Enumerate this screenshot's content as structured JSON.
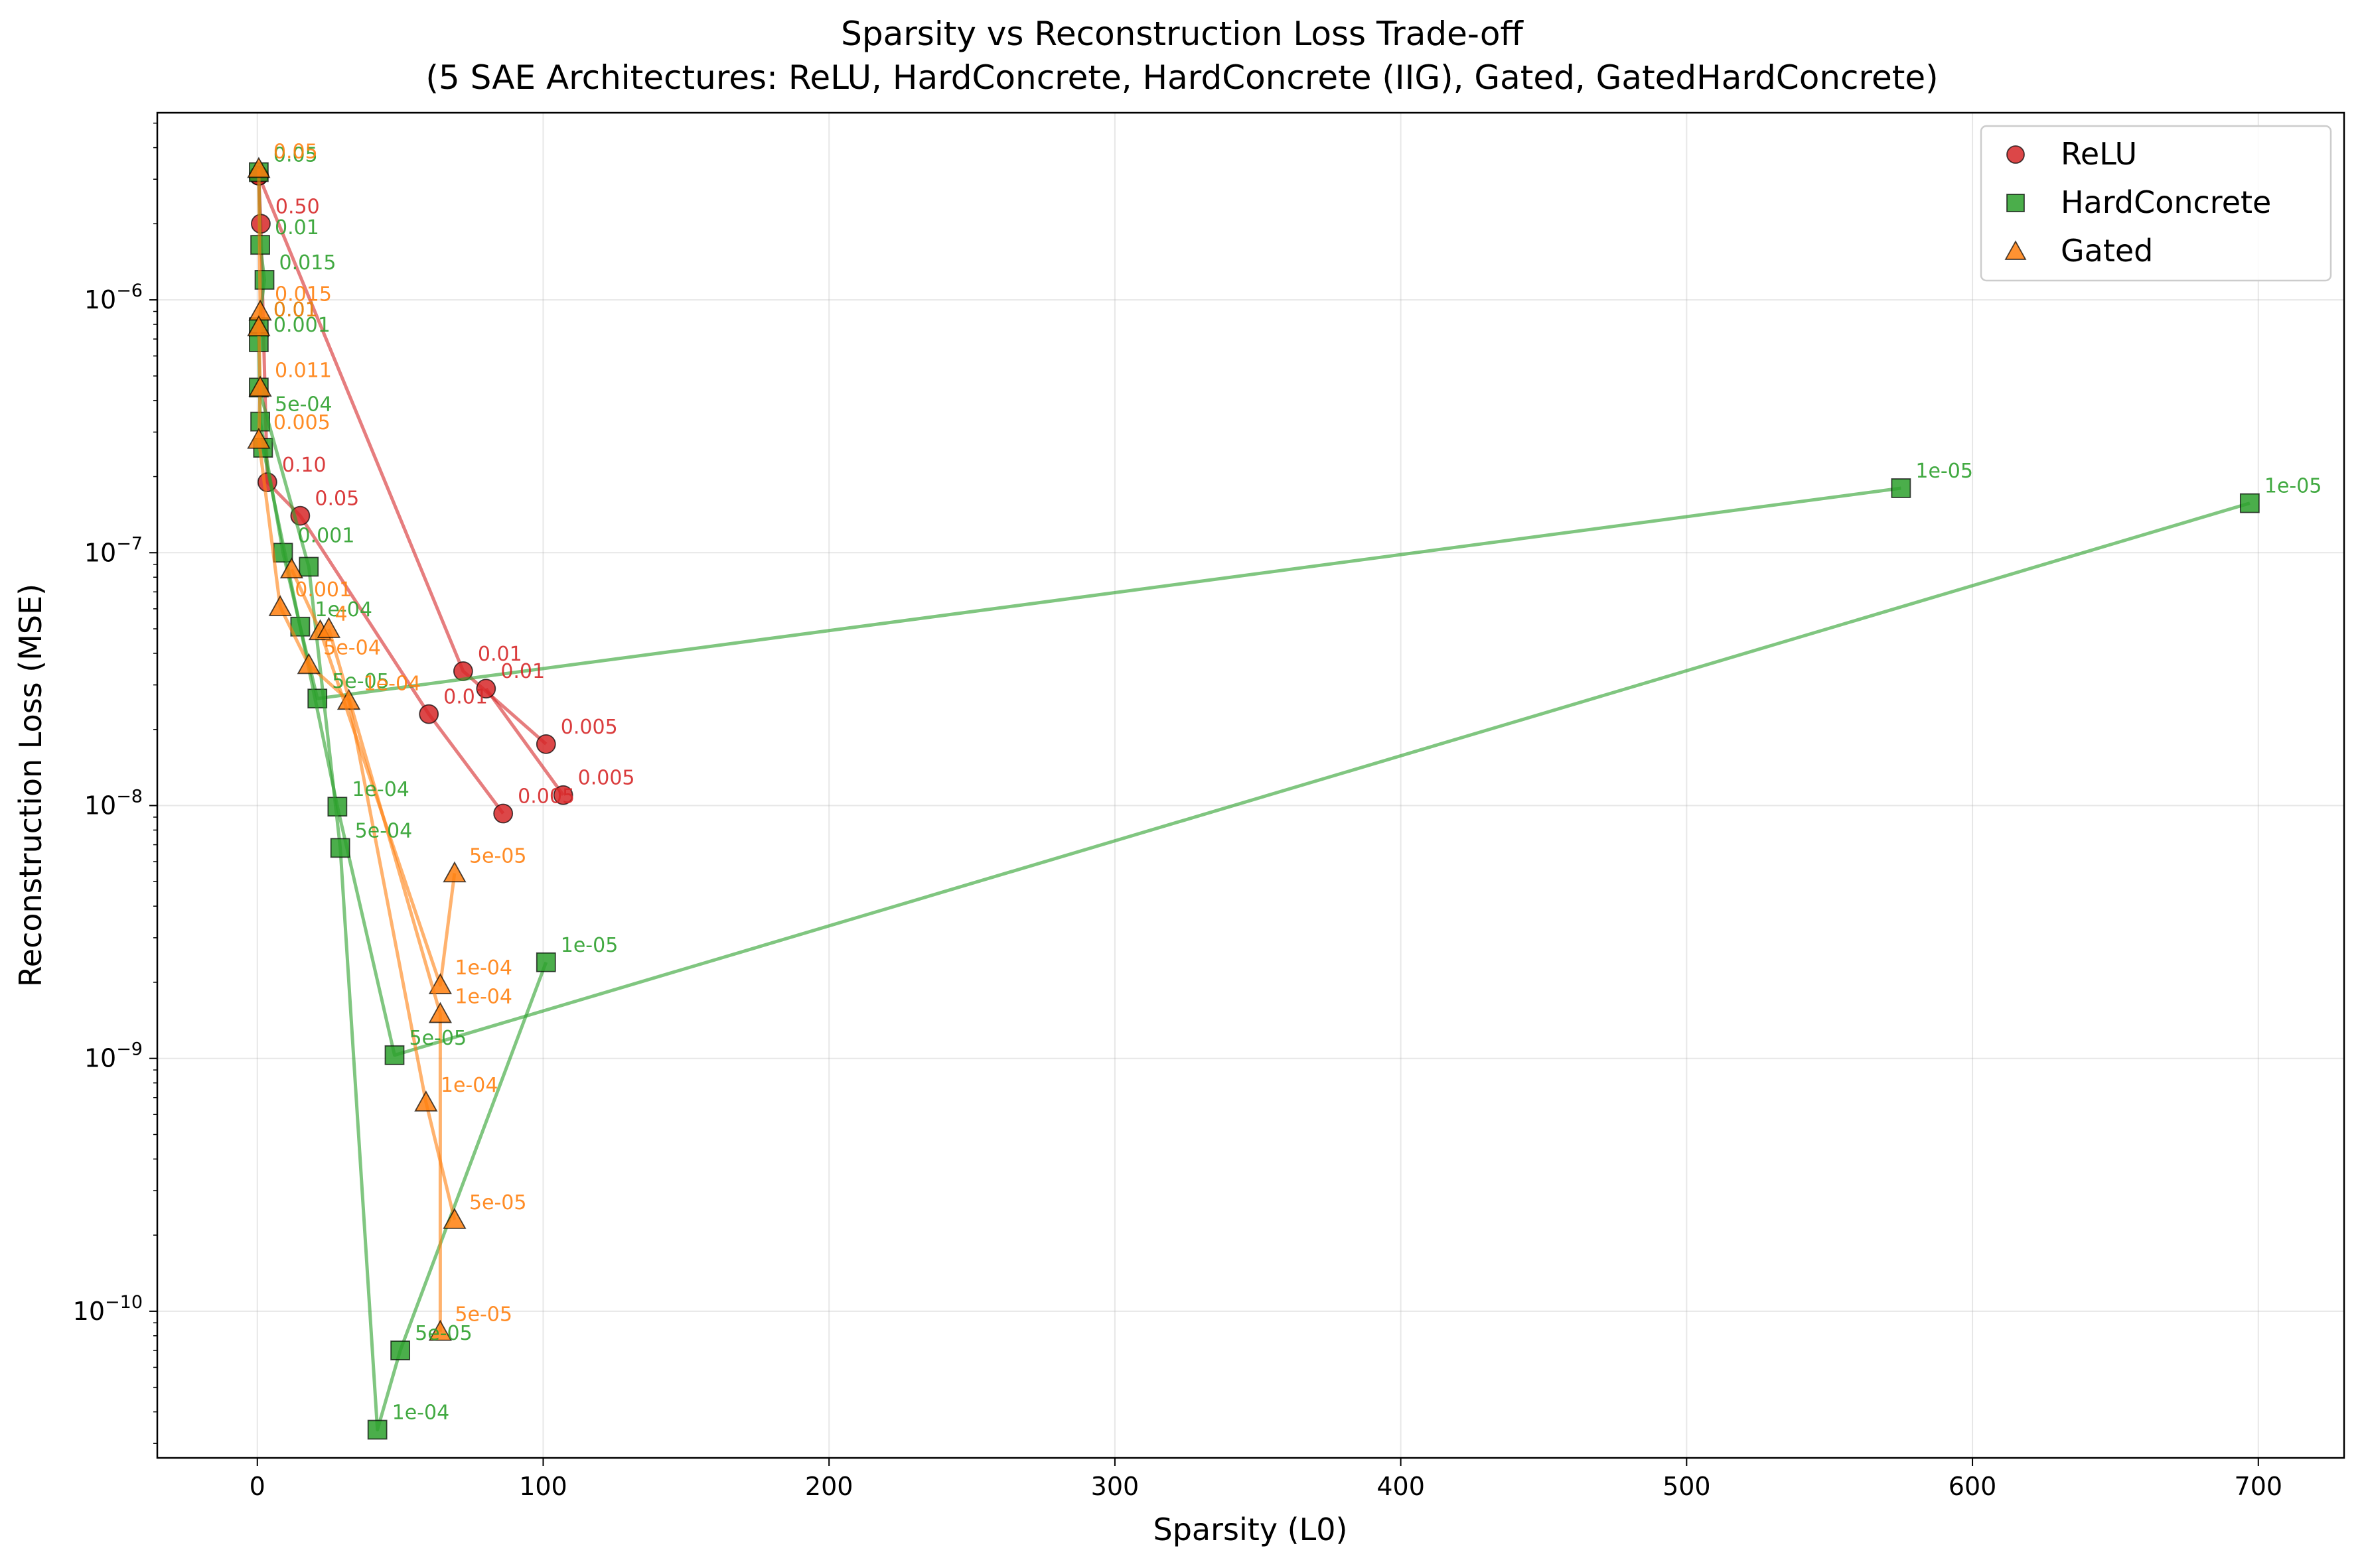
{
  "chart_data": {
    "type": "scatter",
    "title_line1": "Sparsity vs Reconstruction Loss Trade-off",
    "title_line2": "(5 SAE Architectures: ReLU, HardConcrete, HardConcrete (IIG), Gated, GatedHardConcrete)",
    "xlabel": "Sparsity (L0)",
    "ylabel": "Reconstruction Loss (MSE)",
    "xlim": [
      -35,
      730
    ],
    "ylim_log10": [
      -10.58,
      -5.26
    ],
    "y_scale": "log",
    "grid": true,
    "legend_position": "top-right",
    "x_ticks": [
      0,
      100,
      200,
      300,
      400,
      500,
      600,
      700
    ],
    "y_ticks_exp": [
      -10,
      -9,
      -8,
      -7,
      -6
    ],
    "y_tick_base": "10",
    "colors": {
      "relu": "#d62728",
      "hardconcrete": "#2ca02c",
      "gated": "#ff7f0e"
    },
    "legend": [
      {
        "label": "ReLU",
        "marker": "circle",
        "color": "#d62728"
      },
      {
        "label": "HardConcrete",
        "marker": "square",
        "color": "#2ca02c"
      },
      {
        "label": "Gated",
        "marker": "triangle",
        "color": "#ff7f0e"
      }
    ],
    "series": [
      {
        "name": "ReLU",
        "marker": "circle",
        "color": "#d62728",
        "points": [
          {
            "x": 0.5,
            "y": 3.1e-06,
            "label": ""
          },
          {
            "x": 1.2,
            "y": 2e-06,
            "label": "0.50"
          },
          {
            "x": 3.5,
            "y": 1.9e-07,
            "label": "0.10"
          },
          {
            "x": 15,
            "y": 1.4e-07,
            "label": "0.05"
          },
          {
            "x": 60,
            "y": 2.3e-08,
            "label": "0.01"
          },
          {
            "x": 86,
            "y": 9.3e-09,
            "label": "0.005"
          }
        ]
      },
      {
        "name": "ReLU",
        "marker": "circle",
        "color": "#d62728",
        "points": [
          {
            "x": 0.5,
            "y": 3.1e-06,
            "label": ""
          },
          {
            "x": 72,
            "y": 3.4e-08,
            "label": "0.01"
          },
          {
            "x": 101,
            "y": 1.75e-08,
            "label": "0.005"
          }
        ]
      },
      {
        "name": "ReLU",
        "marker": "circle",
        "color": "#d62728",
        "points": [
          {
            "x": 80,
            "y": 2.9e-08,
            "label": "0.01"
          },
          {
            "x": 107,
            "y": 1.1e-08,
            "label": "0.005"
          }
        ]
      },
      {
        "name": "HardConcrete",
        "marker": "square",
        "color": "#2ca02c",
        "points": [
          {
            "x": 0.5,
            "y": 3.2e-06,
            "label": "0.05"
          },
          {
            "x": 1,
            "y": 1.65e-06,
            "label": "0.01"
          },
          {
            "x": 2.5,
            "y": 1.2e-06,
            "label": "0.015"
          },
          {
            "x": 0.5,
            "y": 7.8e-07,
            "label": "0.01"
          },
          {
            "x": 0.5,
            "y": 6.8e-07,
            "label": "0.001"
          },
          {
            "x": 1,
            "y": 3.3e-07,
            "label": "5e-04"
          },
          {
            "x": 9,
            "y": 1e-07,
            "label": "0.001"
          },
          {
            "x": 15,
            "y": 5.1e-08,
            "label": "1e-04"
          },
          {
            "x": 21,
            "y": 2.65e-08,
            "label": "5e-05"
          },
          {
            "x": 575,
            "y": 1.8e-07,
            "label": "1e-05"
          }
        ]
      },
      {
        "name": "HardConcrete",
        "marker": "square",
        "color": "#2ca02c",
        "points": [
          {
            "x": 2,
            "y": 2.6e-07,
            "label": ""
          },
          {
            "x": 28,
            "y": 9.9e-09,
            "label": "1e-04"
          },
          {
            "x": 48,
            "y": 1.03e-09,
            "label": "5e-05"
          },
          {
            "x": 697,
            "y": 1.57e-07,
            "label": "1e-05"
          }
        ]
      },
      {
        "name": "HardConcrete",
        "marker": "square",
        "color": "#2ca02c",
        "points": [
          {
            "x": 0.5,
            "y": 4.5e-07,
            "label": ""
          },
          {
            "x": 18,
            "y": 8.8e-08,
            "label": ""
          },
          {
            "x": 29,
            "y": 6.8e-09,
            "label": "5e-04"
          },
          {
            "x": 42,
            "y": 3.4e-11,
            "label": "1e-04"
          },
          {
            "x": 50,
            "y": 7e-11,
            "label": "5e-05"
          },
          {
            "x": 101,
            "y": 2.4e-09,
            "label": "1e-05"
          }
        ]
      },
      {
        "name": "Gated",
        "marker": "triangle",
        "color": "#ff7f0e",
        "points": [
          {
            "x": 0.5,
            "y": 3.3e-06,
            "label": "0.05"
          },
          {
            "x": 1,
            "y": 9e-07,
            "label": "0.015"
          },
          {
            "x": 0.5,
            "y": 7.8e-07,
            "label": "0.01"
          },
          {
            "x": 1,
            "y": 4.5e-07,
            "label": "0.011"
          },
          {
            "x": 0.5,
            "y": 2.8e-07,
            "label": "0.005"
          },
          {
            "x": 8,
            "y": 6.1e-08,
            "label": "0.001"
          },
          {
            "x": 18,
            "y": 3.6e-08,
            "label": "5e-04"
          },
          {
            "x": 32,
            "y": 2.6e-08,
            "label": "1e-04"
          },
          {
            "x": 59,
            "y": 6.7e-10,
            "label": "1e-04"
          },
          {
            "x": 69,
            "y": 2.3e-10,
            "label": "5e-05"
          }
        ]
      },
      {
        "name": "Gated",
        "marker": "triangle",
        "color": "#ff7f0e",
        "points": [
          {
            "x": 12,
            "y": 8.6e-08,
            "label": ""
          },
          {
            "x": 22,
            "y": 4.9e-08,
            "label": "4"
          },
          {
            "x": 64,
            "y": 1.95e-09,
            "label": "1e-04"
          },
          {
            "x": 69,
            "y": 5.4e-09,
            "label": "5e-05"
          }
        ]
      },
      {
        "name": "Gated",
        "marker": "triangle",
        "color": "#ff7f0e",
        "points": [
          {
            "x": 25,
            "y": 5e-08,
            "label": ""
          },
          {
            "x": 64,
            "y": 1.5e-09,
            "label": "1e-04"
          },
          {
            "x": 64,
            "y": 8.3e-11,
            "label": "5e-05"
          }
        ]
      }
    ]
  }
}
